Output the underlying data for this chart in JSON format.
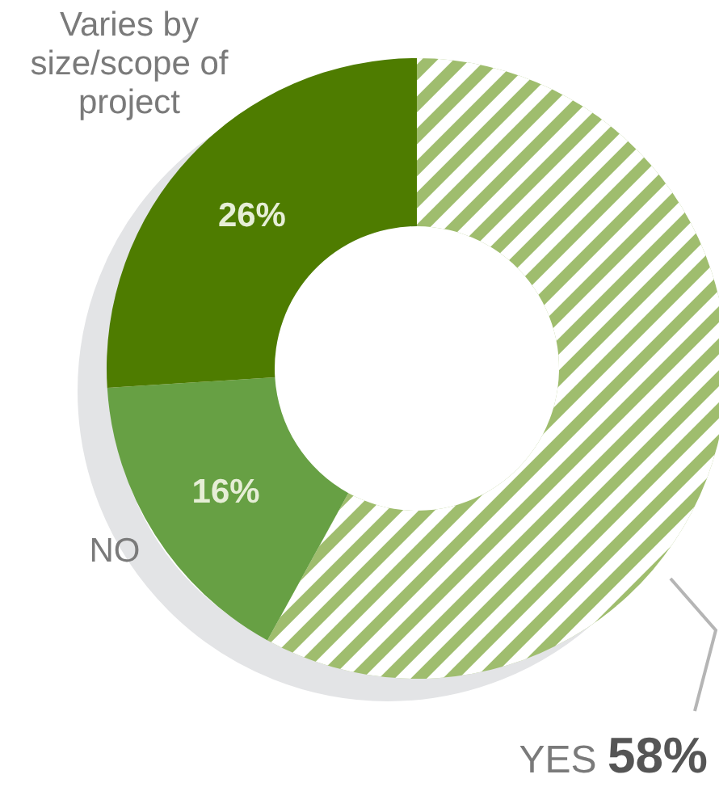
{
  "chart_data": {
    "type": "donut",
    "categories": [
      "YES",
      "NO",
      "Varies by size/scope of project"
    ],
    "values": [
      58,
      16,
      26
    ],
    "colors": [
      "#9fbd6e",
      "#67a044",
      "#4e7c00"
    ],
    "value_labels": [
      "58%",
      "16%",
      "26%"
    ]
  }
}
